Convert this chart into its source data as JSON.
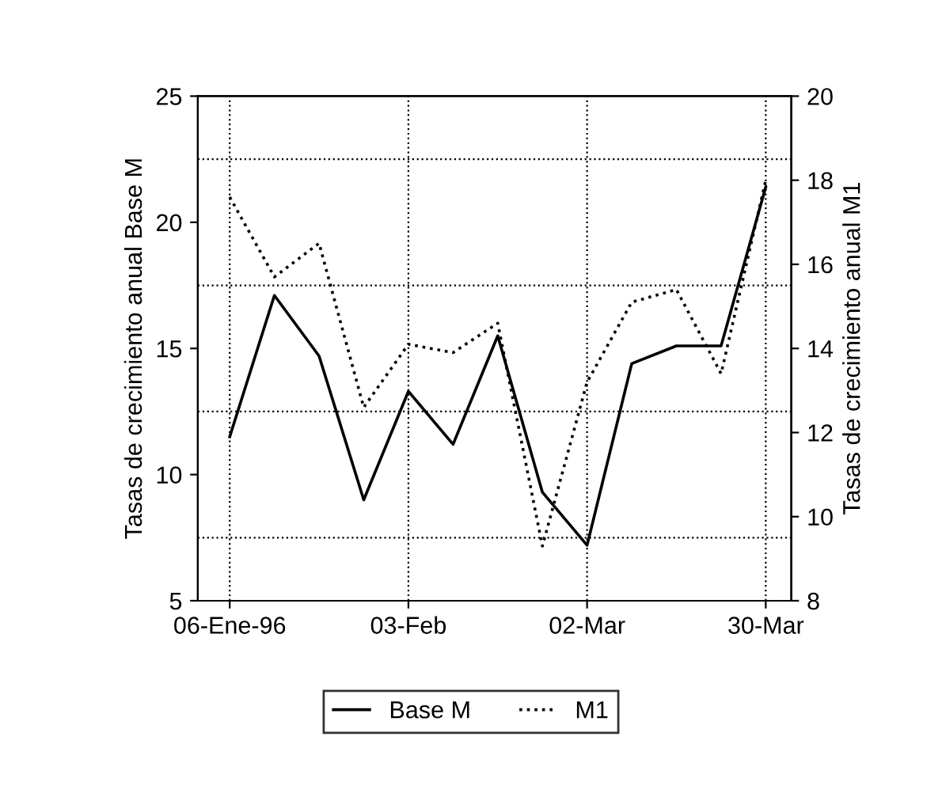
{
  "chart_data": {
    "type": "line",
    "ylabel": "Tasas de crecimiento anual Base M",
    "y2label": "Tasas de crecimiento anual M1",
    "x": [
      "1996-01-06",
      "1996-01-13",
      "1996-01-20",
      "1996-01-27",
      "1996-02-03",
      "1996-02-10",
      "1996-02-17",
      "1996-02-24",
      "1996-03-02",
      "1996-03-09",
      "1996-03-16",
      "1996-03-23",
      "1996-03-30"
    ],
    "series": [
      {
        "name": "Base M",
        "color": "#000000",
        "line_style": "solid",
        "values": [
          11.5,
          17.1,
          14.7,
          9.0,
          13.3,
          11.2,
          15.5,
          9.3,
          7.2,
          14.4,
          15.1,
          15.1,
          21.4
        ]
      },
      {
        "name": "M1",
        "color": "#000000",
        "line_style": "dotted",
        "axis": "y2",
        "values": [
          17.6,
          15.7,
          16.5,
          12.6,
          14.1,
          13.9,
          14.6,
          9.3,
          13.2,
          15.1,
          15.4,
          13.4,
          18.0
        ]
      }
    ],
    "xlim": [
      "1996-01-01",
      "1996-04-03"
    ],
    "xticks": [
      {
        "value": "1996-01-06",
        "label": "06-Ene-96"
      },
      {
        "value": "1996-02-03",
        "label": "03-Feb"
      },
      {
        "value": "1996-03-02",
        "label": "02-Mar"
      },
      {
        "value": "1996-03-30",
        "label": "30-Mar"
      }
    ],
    "ylim": [
      5,
      25
    ],
    "yticks": [
      5,
      10,
      15,
      20,
      25
    ],
    "y2lim": [
      8,
      20
    ],
    "y2ticks": [
      8,
      10,
      12,
      14,
      16,
      18,
      20
    ],
    "ref_lines": [
      {
        "axis": "y",
        "value": 7.5,
        "label": null,
        "color": "#000000",
        "line_style": "dotted"
      },
      {
        "axis": "y",
        "value": 12.5,
        "label": null,
        "color": "#000000",
        "line_style": "dotted"
      },
      {
        "axis": "y",
        "value": 17.5,
        "label": null,
        "color": "#000000",
        "line_style": "dotted"
      },
      {
        "axis": "y",
        "value": 22.5,
        "label": null,
        "color": "#000000",
        "line_style": "dotted"
      }
    ],
    "grid": "x",
    "legend": "bottom"
  }
}
